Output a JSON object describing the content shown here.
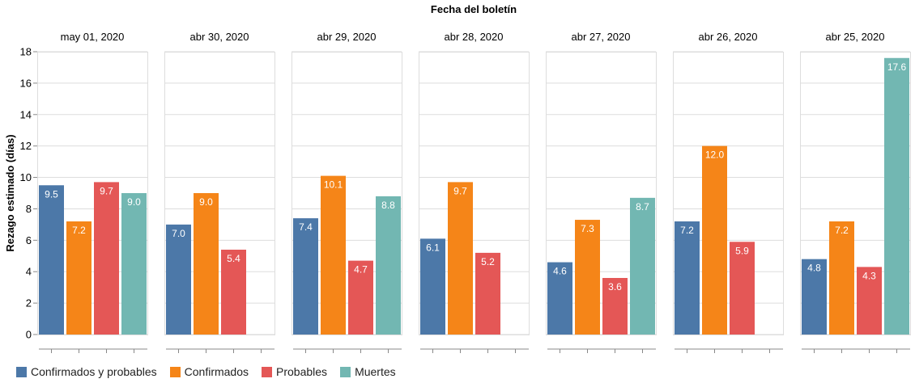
{
  "chart_data": {
    "type": "bar",
    "title": "Fecha del boletín",
    "ylabel": "Rezago estimado (días)",
    "ylim": [
      0,
      18
    ],
    "yticks": [
      0,
      2,
      4,
      6,
      8,
      10,
      12,
      14,
      16,
      18
    ],
    "facets": [
      "may 01, 2020",
      "abr 30, 2020",
      "abr 29, 2020",
      "abr 28, 2020",
      "abr 27, 2020",
      "abr 26, 2020",
      "abr 25, 2020"
    ],
    "series": [
      {
        "name": "Confirmados y probables",
        "color": "#4c78a8",
        "values": [
          9.5,
          7.0,
          7.4,
          6.1,
          4.6,
          7.2,
          4.8
        ]
      },
      {
        "name": "Confirmados",
        "color": "#f58518",
        "values": [
          7.2,
          9.0,
          10.1,
          9.7,
          7.3,
          12.0,
          7.2
        ]
      },
      {
        "name": "Probables",
        "color": "#e45756",
        "values": [
          9.7,
          5.4,
          4.7,
          5.2,
          3.6,
          5.9,
          4.3
        ]
      },
      {
        "name": "Muertes",
        "color": "#72b7b2",
        "values": [
          9.0,
          null,
          8.8,
          null,
          8.7,
          null,
          17.6
        ]
      }
    ],
    "legend": "bottom-left",
    "grid": true
  }
}
